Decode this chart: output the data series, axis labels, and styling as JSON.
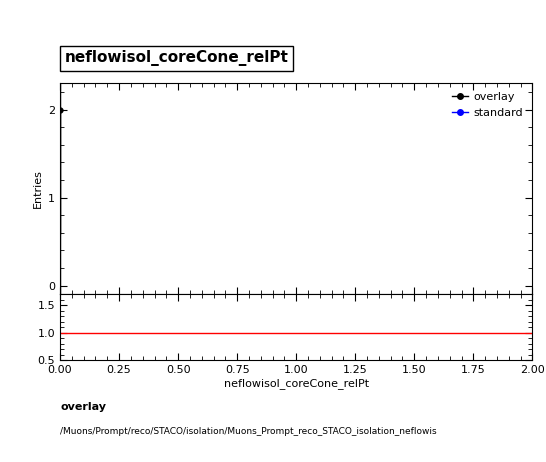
{
  "title": "neflowisol_coreCone_relPt",
  "ylabel_main": "Entries",
  "xlabel": "neflowisol_coreCone_relPt",
  "xlim": [
    0,
    2
  ],
  "ylim_main": [
    -0.1,
    2.3
  ],
  "ylim_ratio": [
    0.5,
    1.7
  ],
  "yticks_main": [
    0,
    1,
    2
  ],
  "yticks_ratio": [
    0.5,
    1.0,
    1.5
  ],
  "overlay_x": [
    0.0
  ],
  "overlay_y": [
    2
  ],
  "overlay_yerr": 1.4142135623730951,
  "overlay_color": "#000000",
  "overlay_label": "overlay",
  "standard_color": "#0000ff",
  "standard_label": "standard",
  "ratio_y": 1.0,
  "ratio_color": "#ff0000",
  "bottom_label1": "overlay",
  "bottom_label2": "/Muons/Prompt/reco/STACO/isolation/Muons_Prompt_reco_STACO_isolation_neflowis",
  "title_fontsize": 11,
  "axis_fontsize": 8,
  "tick_fontsize": 8,
  "background_color": "#ffffff"
}
